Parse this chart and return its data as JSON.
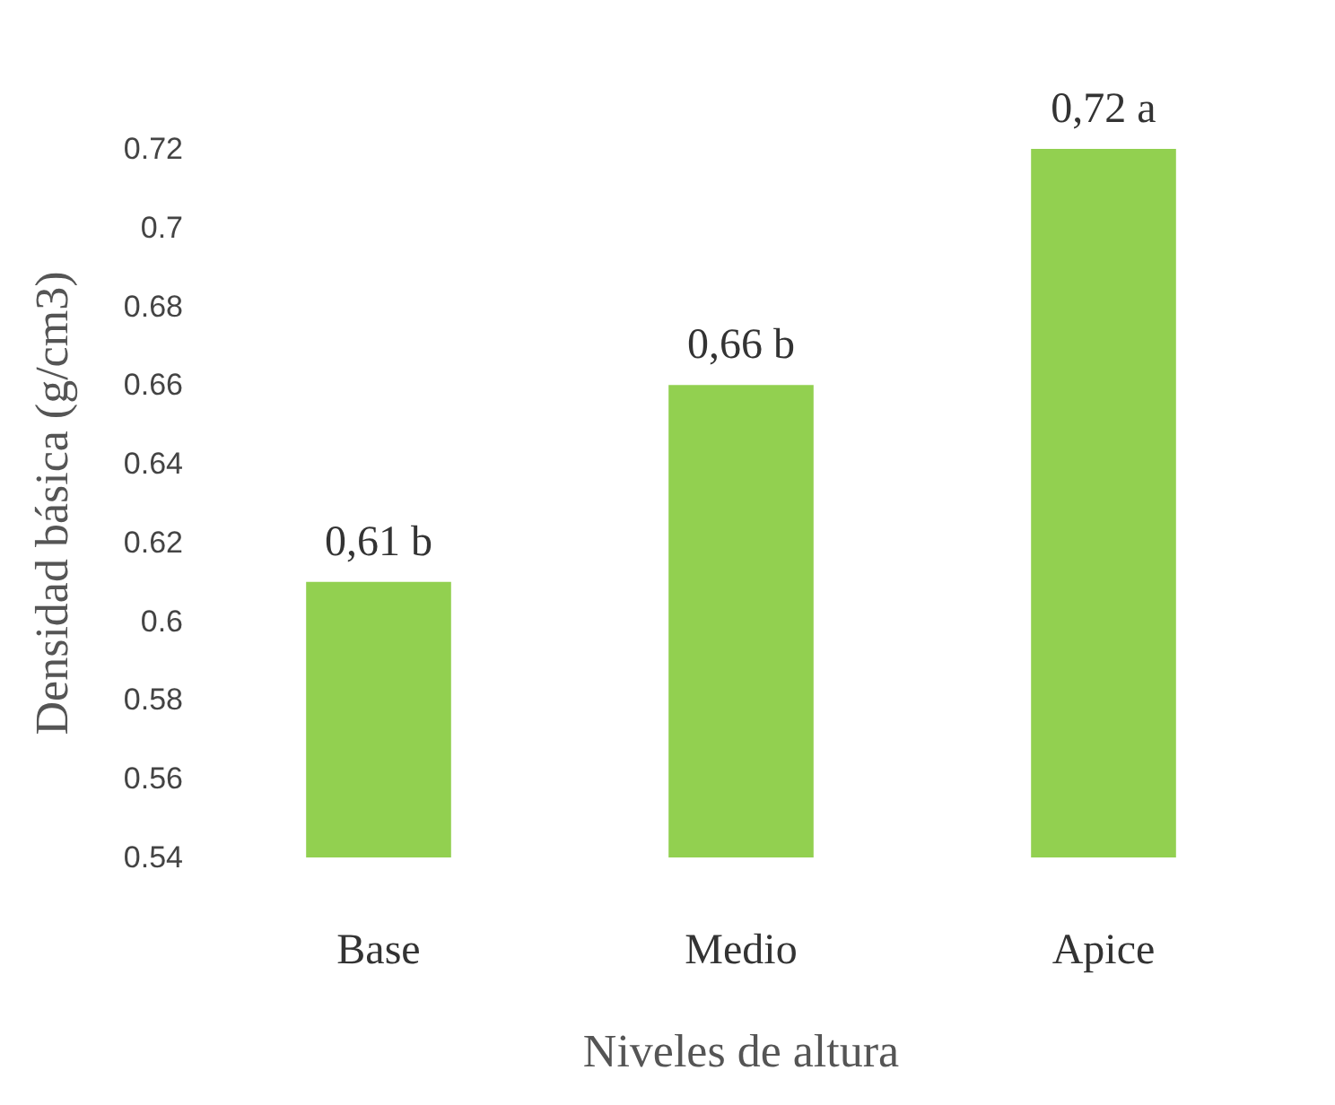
{
  "chart_data": {
    "type": "bar",
    "xlabel": "Niveles de altura",
    "ylabel": "Densidad básica (g/cm3)",
    "categories": [
      "Base",
      "Medio",
      "Apice"
    ],
    "values": [
      0.61,
      0.66,
      0.72
    ],
    "color": "#92d050",
    "value_labels": [
      "0,61 b",
      "0,66 b",
      "0,72 a"
    ],
    "ylim": [
      0.54,
      0.72
    ],
    "yticks": [
      0.54,
      0.56,
      0.58,
      0.6,
      0.62,
      0.64,
      0.66,
      0.68,
      0.7,
      0.72
    ],
    "grid": false
  }
}
